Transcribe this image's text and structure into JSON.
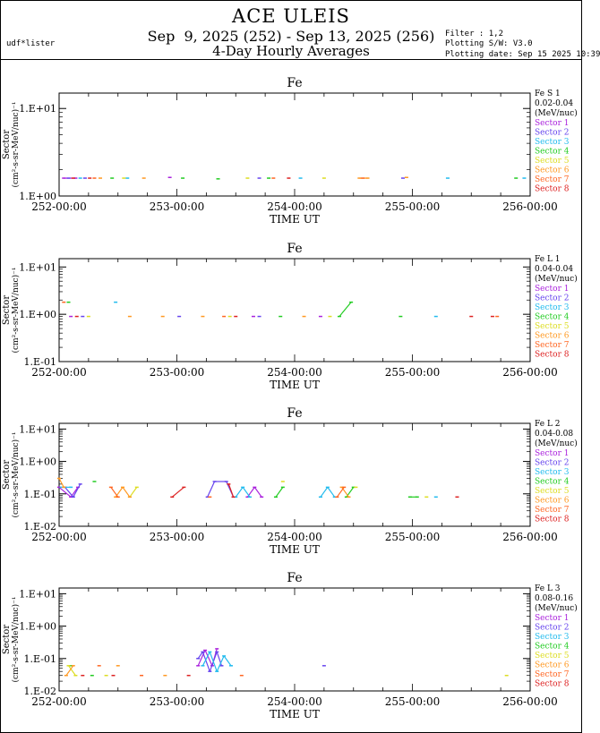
{
  "header": {
    "title": "ACE ULEIS",
    "date_range": "Sep  9, 2025 (252) - Sep 13, 2025 (256)",
    "subtitle": "4-Day Hourly Averages",
    "user": "udf*lister",
    "filter": "Filter : 1,2",
    "software": "Plotting S/W: V3.0",
    "plot_date": "Plotting date: Sep 15 2025 10:39"
  },
  "colors": {
    "sectors": [
      "#aa22dd",
      "#6644ee",
      "#22bbee",
      "#22cc22",
      "#dddd22",
      "#ff9922",
      "#ff6622",
      "#dd2222"
    ]
  },
  "chart_data": [
    {
      "type": "line",
      "title": "Fe",
      "species": "Fe S 1",
      "energy": "0.02-0.04",
      "unit": "(MeV/nuc)",
      "ylabel": "Sector",
      "ylabel2": "(cm²-s-sr-MeV/nuc)⁻¹",
      "xlabel": "TIME UT",
      "x_range": [
        252,
        256
      ],
      "y_scale": "log",
      "ylim": [
        1,
        15
      ],
      "y_ticks": [
        {
          "v": 1,
          "label": "1.E+00"
        },
        {
          "v": 10,
          "label": "1.E+01"
        }
      ],
      "x_ticks": [
        {
          "v": 252,
          "label": "252-00:00"
        },
        {
          "v": 253,
          "label": "253-00:00"
        },
        {
          "v": 254,
          "label": "254-00:00"
        },
        {
          "v": 255,
          "label": "255-00:00"
        },
        {
          "v": 256,
          "label": "256-00:00"
        }
      ],
      "legend": [
        "Sector 1",
        "Sector 2",
        "Sector 3",
        "Sector 4",
        "Sector 5",
        "Sector 6",
        "Sector 7",
        "Sector 8"
      ],
      "series": [
        {
          "name": "Sector 1",
          "points": [
            [
              252.04,
              1.6
            ],
            [
              252.14,
              1.6
            ],
            [
              252.94,
              1.63
            ]
          ]
        },
        {
          "name": "Sector 2",
          "points": [
            [
              252.08,
              1.6
            ],
            [
              252.22,
              1.6
            ],
            [
              253.7,
              1.6
            ],
            [
              254.92,
              1.6
            ]
          ]
        },
        {
          "name": "Sector 3",
          "points": [
            [
              252.18,
              1.6
            ],
            [
              252.58,
              1.6
            ],
            [
              254.05,
              1.6
            ],
            [
              255.3,
              1.6
            ],
            [
              255.95,
              1.6
            ]
          ]
        },
        {
          "name": "Sector 4",
          "points": [
            [
              252.45,
              1.6
            ],
            [
              253.05,
              1.6
            ],
            [
              253.35,
              1.57
            ],
            [
              253.78,
              1.6
            ],
            [
              255.88,
              1.6
            ]
          ]
        },
        {
          "name": "Sector 5",
          "points": [
            [
              252.55,
              1.6
            ],
            [
              253.6,
              1.6
            ],
            [
              254.25,
              1.6
            ]
          ]
        },
        {
          "name": "Sector 6",
          "points": [
            [
              252.35,
              1.6
            ],
            [
              252.72,
              1.6
            ],
            [
              254.55,
              1.6
            ],
            [
              254.62,
              1.6
            ],
            [
              254.95,
              1.63
            ]
          ]
        },
        {
          "name": "Sector 7",
          "points": [
            [
              252.3,
              1.6
            ],
            [
              253.82,
              1.6
            ],
            [
              254.58,
              1.6
            ]
          ]
        },
        {
          "name": "Sector 8",
          "points": [
            [
              252.12,
              1.6
            ],
            [
              252.26,
              1.6
            ],
            [
              253.95,
              1.6
            ]
          ]
        }
      ]
    },
    {
      "type": "line",
      "title": "Fe",
      "species": "Fe L 1",
      "energy": "0.04-0.04",
      "unit": "(MeV/nuc)",
      "ylabel": "Sector",
      "ylabel2": "(cm²-s-sr-MeV/nuc)⁻¹",
      "xlabel": "TIME UT",
      "x_range": [
        252,
        256
      ],
      "y_scale": "log",
      "ylim": [
        0.1,
        15
      ],
      "y_ticks": [
        {
          "v": 0.1,
          "label": "1.E-01"
        },
        {
          "v": 1,
          "label": "1.E+00"
        },
        {
          "v": 10,
          "label": "1.E+01"
        }
      ],
      "x_ticks": [
        {
          "v": 252,
          "label": "252-00:00"
        },
        {
          "v": 253,
          "label": "253-00:00"
        },
        {
          "v": 254,
          "label": "254-00:00"
        },
        {
          "v": 255,
          "label": "255-00:00"
        },
        {
          "v": 256,
          "label": "256-00:00"
        }
      ],
      "legend": [
        "Sector 1",
        "Sector 2",
        "Sector 3",
        "Sector 4",
        "Sector 5",
        "Sector 6",
        "Sector 7",
        "Sector 8"
      ],
      "series": [
        {
          "name": "Sector 1",
          "points": [
            [
              252.1,
              0.9
            ],
            [
              253.65,
              0.9
            ],
            [
              254.22,
              0.9
            ]
          ]
        },
        {
          "name": "Sector 2",
          "points": [
            [
              252.2,
              0.9
            ],
            [
              253.02,
              0.9
            ],
            [
              253.7,
              0.9
            ]
          ]
        },
        {
          "name": "Sector 3",
          "points": [
            [
              252.48,
              1.8
            ],
            [
              255.2,
              0.9
            ]
          ]
        },
        {
          "name": "Sector 4",
          "points": [
            [
              252.08,
              1.8
            ],
            [
              253.88,
              0.9
            ],
            [
              254.38,
              0.9
            ],
            [
              254.48,
              1.8
            ],
            [
              254.9,
              0.9
            ]
          ]
        },
        {
          "name": "Sector 5",
          "points": [
            [
              252.25,
              0.9
            ],
            [
              253.45,
              0.9
            ],
            [
              254.3,
              0.9
            ]
          ]
        },
        {
          "name": "Sector 6",
          "points": [
            [
              252.6,
              0.9
            ],
            [
              252.88,
              0.9
            ],
            [
              253.22,
              0.9
            ],
            [
              254.08,
              0.9
            ]
          ]
        },
        {
          "name": "Sector 7",
          "points": [
            [
              252.04,
              1.8
            ],
            [
              253.4,
              0.9
            ],
            [
              255.72,
              0.9
            ]
          ]
        },
        {
          "name": "Sector 8",
          "points": [
            [
              252.15,
              0.9
            ],
            [
              253.5,
              0.9
            ],
            [
              255.5,
              0.9
            ],
            [
              255.68,
              0.9
            ]
          ]
        }
      ]
    },
    {
      "type": "line",
      "title": "Fe",
      "species": "Fe L 2",
      "energy": "0.04-0.08",
      "unit": "(MeV/nuc)",
      "ylabel": "Sector",
      "ylabel2": "(cm²-s-sr-MeV/nuc)⁻¹",
      "xlabel": "TIME UT",
      "x_range": [
        252,
        256
      ],
      "y_scale": "log",
      "ylim": [
        0.01,
        15
      ],
      "y_ticks": [
        {
          "v": 0.01,
          "label": "1.E-02"
        },
        {
          "v": 0.1,
          "label": "1.E-01"
        },
        {
          "v": 1,
          "label": "1.E+00"
        },
        {
          "v": 10,
          "label": "1.E+01"
        }
      ],
      "x_ticks": [
        {
          "v": 252,
          "label": "252-00:00"
        },
        {
          "v": 253,
          "label": "253-00:00"
        },
        {
          "v": 254,
          "label": "254-00:00"
        },
        {
          "v": 255,
          "label": "255-00:00"
        },
        {
          "v": 256,
          "label": "256-00:00"
        }
      ],
      "legend": [
        "Sector 1",
        "Sector 2",
        "Sector 3",
        "Sector 4",
        "Sector 5",
        "Sector 6",
        "Sector 7",
        "Sector 8"
      ],
      "series": [
        {
          "name": "Sector 1",
          "points": [
            [
              252.0,
              0.16
            ],
            [
              252.1,
              0.08
            ],
            [
              252.16,
              0.16
            ],
            [
              253.6,
              0.08
            ],
            [
              253.66,
              0.16
            ],
            [
              253.72,
              0.08
            ]
          ]
        },
        {
          "name": "Sector 2",
          "points": [
            [
              252.05,
              0.16
            ],
            [
              252.12,
              0.08
            ],
            [
              252.18,
              0.2
            ],
            [
              253.26,
              0.08
            ],
            [
              253.32,
              0.24
            ],
            [
              253.42,
              0.24
            ],
            [
              253.48,
              0.08
            ]
          ]
        },
        {
          "name": "Sector 3",
          "points": [
            [
              252.02,
              0.16
            ],
            [
              252.1,
              0.16
            ],
            [
              253.5,
              0.08
            ],
            [
              253.56,
              0.16
            ],
            [
              253.62,
              0.08
            ],
            [
              254.22,
              0.08
            ],
            [
              254.28,
              0.16
            ],
            [
              254.34,
              0.08
            ],
            [
              255.2,
              0.08
            ]
          ]
        },
        {
          "name": "Sector 4",
          "points": [
            [
              252.3,
              0.24
            ],
            [
              253.84,
              0.08
            ],
            [
              253.9,
              0.16
            ],
            [
              254.44,
              0.08
            ],
            [
              254.5,
              0.16
            ],
            [
              254.98,
              0.08
            ],
            [
              255.04,
              0.08
            ]
          ]
        },
        {
          "name": "Sector 5",
          "points": [
            [
              252.6,
              0.08
            ],
            [
              252.66,
              0.16
            ],
            [
              253.9,
              0.24
            ],
            [
              254.52,
              0.16
            ],
            [
              255.12,
              0.08
            ]
          ]
        },
        {
          "name": "Sector 6",
          "points": [
            [
              252.0,
              0.3
            ],
            [
              252.04,
              0.16
            ],
            [
              252.48,
              0.08
            ],
            [
              252.54,
              0.16
            ],
            [
              252.6,
              0.08
            ],
            [
              254.4,
              0.16
            ],
            [
              254.46,
              0.08
            ]
          ]
        },
        {
          "name": "Sector 7",
          "points": [
            [
              252.44,
              0.16
            ],
            [
              252.5,
              0.08
            ],
            [
              253.28,
              0.08
            ],
            [
              254.36,
              0.08
            ],
            [
              254.42,
              0.16
            ]
          ]
        },
        {
          "name": "Sector 8",
          "points": [
            [
              252.96,
              0.08
            ],
            [
              253.06,
              0.16
            ],
            [
              253.44,
              0.2
            ],
            [
              253.48,
              0.08
            ],
            [
              255.38,
              0.08
            ]
          ]
        }
      ]
    },
    {
      "type": "line",
      "title": "Fe",
      "species": "Fe L 3",
      "energy": "0.08-0.16",
      "unit": "(MeV/nuc)",
      "ylabel": "Sector",
      "ylabel2": "(cm²-s-sr-MeV/nuc)⁻¹",
      "xlabel": "TIME UT",
      "x_range": [
        252,
        256
      ],
      "y_scale": "log",
      "ylim": [
        0.01,
        15
      ],
      "y_ticks": [
        {
          "v": 0.01,
          "label": "1.E-02"
        },
        {
          "v": 0.1,
          "label": "1.E-01"
        },
        {
          "v": 1,
          "label": "1.E+00"
        },
        {
          "v": 10,
          "label": "1.E+01"
        }
      ],
      "x_ticks": [
        {
          "v": 252,
          "label": "252-00:00"
        },
        {
          "v": 253,
          "label": "253-00:00"
        },
        {
          "v": 254,
          "label": "254-00:00"
        },
        {
          "v": 255,
          "label": "255-00:00"
        },
        {
          "v": 256,
          "label": "256-00:00"
        }
      ],
      "legend": [
        "Sector 1",
        "Sector 2",
        "Sector 3",
        "Sector 4",
        "Sector 5",
        "Sector 6",
        "Sector 7",
        "Sector 8"
      ],
      "series": [
        {
          "name": "Sector 1",
          "points": [
            [
              253.18,
              0.06
            ],
            [
              253.24,
              0.18
            ],
            [
              253.3,
              0.06
            ],
            [
              253.34,
              0.2
            ]
          ]
        },
        {
          "name": "Sector 2",
          "points": [
            [
              253.18,
              0.1
            ],
            [
              253.22,
              0.16
            ],
            [
              253.28,
              0.04
            ],
            [
              253.34,
              0.16
            ],
            [
              253.38,
              0.06
            ],
            [
              254.25,
              0.06
            ]
          ]
        },
        {
          "name": "Sector 3",
          "points": [
            [
              253.22,
              0.06
            ],
            [
              253.28,
              0.16
            ],
            [
              253.34,
              0.04
            ],
            [
              253.4,
              0.12
            ],
            [
              253.46,
              0.06
            ]
          ]
        },
        {
          "name": "Sector 4",
          "points": [
            [
              252.1,
              0.06
            ],
            [
              252.28,
              0.03
            ]
          ]
        },
        {
          "name": "Sector 5",
          "points": [
            [
              252.08,
              0.06
            ],
            [
              252.14,
              0.03
            ],
            [
              252.4,
              0.03
            ],
            [
              255.8,
              0.03
            ]
          ]
        },
        {
          "name": "Sector 6",
          "points": [
            [
              252.06,
              0.03
            ],
            [
              252.12,
              0.06
            ],
            [
              252.5,
              0.06
            ],
            [
              252.9,
              0.03
            ]
          ]
        },
        {
          "name": "Sector 7",
          "points": [
            [
              252.34,
              0.06
            ],
            [
              252.7,
              0.03
            ],
            [
              253.55,
              0.03
            ]
          ]
        },
        {
          "name": "Sector 8",
          "points": [
            [
              252.2,
              0.03
            ],
            [
              252.46,
              0.03
            ],
            [
              253.1,
              0.03
            ]
          ]
        }
      ]
    }
  ]
}
